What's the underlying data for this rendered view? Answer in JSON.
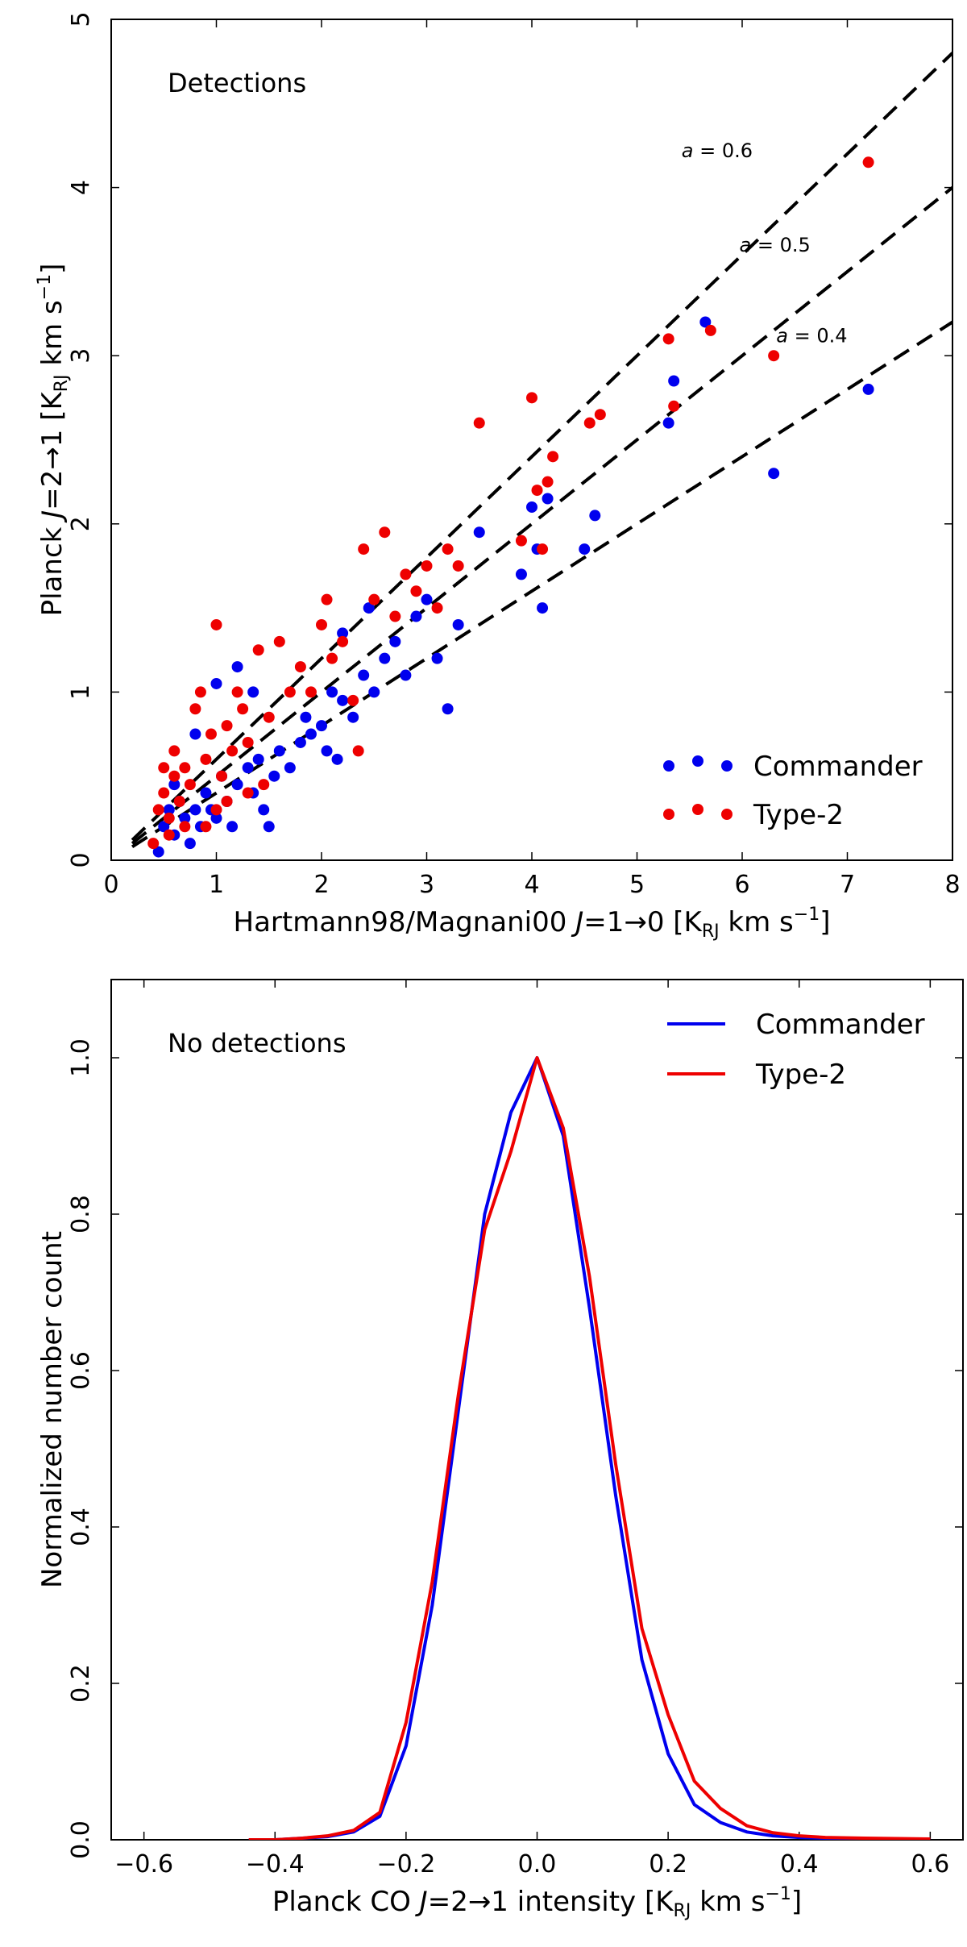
{
  "chart_data": [
    {
      "type": "scatter",
      "annotation": "Detections",
      "xlabel": {
        "pre": "Hartmann98/Magnani00 ",
        "var": "J",
        "mid": "=1→0 [K",
        "sub": "RJ",
        "post": " km s",
        "sup": "−1",
        "end": "]"
      },
      "ylabel": {
        "pre": "Planck ",
        "var": "J",
        "mid": "=2→1 [K",
        "sub": "RJ",
        "post": " km s",
        "sup": "−1",
        "end": "]"
      },
      "xlim": [
        0,
        8
      ],
      "ylim": [
        0,
        5
      ],
      "xticks": [
        "0",
        "1",
        "2",
        "3",
        "4",
        "5",
        "6",
        "7",
        "8"
      ],
      "yticks": [
        "0",
        "1",
        "2",
        "3",
        "4",
        "5"
      ],
      "legend": {
        "position": "lower-right",
        "entries": [
          "Commander",
          "Type-2"
        ]
      },
      "lines": [
        {
          "slope": 0.6,
          "label": "a = 0.6",
          "var": "a",
          "text": " = 0.6",
          "style": "dashed"
        },
        {
          "slope": 0.5,
          "label": "a = 0.5",
          "var": "a",
          "text": " = 0.5",
          "style": "dashed"
        },
        {
          "slope": 0.4,
          "label": "a = 0.4",
          "var": "a",
          "text": " = 0.4",
          "style": "dashed"
        }
      ],
      "series": [
        {
          "name": "Commander",
          "color": "#0000ee",
          "points": [
            [
              0.45,
              0.05
            ],
            [
              0.5,
              0.2
            ],
            [
              0.55,
              0.3
            ],
            [
              0.6,
              0.15
            ],
            [
              0.65,
              0.35
            ],
            [
              0.7,
              0.25
            ],
            [
              0.75,
              0.1
            ],
            [
              0.8,
              0.3
            ],
            [
              0.85,
              0.2
            ],
            [
              0.9,
              0.4
            ],
            [
              0.95,
              0.3
            ],
            [
              1.0,
              0.25
            ],
            [
              1.05,
              0.5
            ],
            [
              1.1,
              0.35
            ],
            [
              1.15,
              0.2
            ],
            [
              1.2,
              0.45
            ],
            [
              1.3,
              0.55
            ],
            [
              1.35,
              0.4
            ],
            [
              1.4,
              0.6
            ],
            [
              1.45,
              0.3
            ],
            [
              1.5,
              0.2
            ],
            [
              1.55,
              0.5
            ],
            [
              1.6,
              0.65
            ],
            [
              1.7,
              0.55
            ],
            [
              1.8,
              0.7
            ],
            [
              1.9,
              0.75
            ],
            [
              2.0,
              0.8
            ],
            [
              2.05,
              0.65
            ],
            [
              2.1,
              1.0
            ],
            [
              2.2,
              0.95
            ],
            [
              2.3,
              0.85
            ],
            [
              2.4,
              1.1
            ],
            [
              2.5,
              1.0
            ],
            [
              2.6,
              1.2
            ],
            [
              2.7,
              1.3
            ],
            [
              2.8,
              1.1
            ],
            [
              2.9,
              1.45
            ],
            [
              3.0,
              1.55
            ],
            [
              3.1,
              1.2
            ],
            [
              3.2,
              0.9
            ],
            [
              3.3,
              1.4
            ],
            [
              3.5,
              1.95
            ],
            [
              3.9,
              1.7
            ],
            [
              4.0,
              2.1
            ],
            [
              4.05,
              1.85
            ],
            [
              4.1,
              1.5
            ],
            [
              4.15,
              2.15
            ],
            [
              4.5,
              1.85
            ],
            [
              4.6,
              2.05
            ],
            [
              5.3,
              2.6
            ],
            [
              5.35,
              2.85
            ],
            [
              5.65,
              3.2
            ],
            [
              6.3,
              2.3
            ],
            [
              7.2,
              2.8
            ],
            [
              1.0,
              1.05
            ],
            [
              1.2,
              1.15
            ],
            [
              1.35,
              1.0
            ],
            [
              0.8,
              0.75
            ],
            [
              0.6,
              0.45
            ],
            [
              2.2,
              1.35
            ],
            [
              2.45,
              1.5
            ],
            [
              1.85,
              0.85
            ],
            [
              2.15,
              0.6
            ]
          ]
        },
        {
          "name": "Type-2",
          "color": "#ee0000",
          "points": [
            [
              0.4,
              0.1
            ],
            [
              0.45,
              0.3
            ],
            [
              0.5,
              0.4
            ],
            [
              0.55,
              0.25
            ],
            [
              0.6,
              0.5
            ],
            [
              0.65,
              0.35
            ],
            [
              0.7,
              0.2
            ],
            [
              0.75,
              0.45
            ],
            [
              0.8,
              0.9
            ],
            [
              0.85,
              1.0
            ],
            [
              0.9,
              0.6
            ],
            [
              0.95,
              0.75
            ],
            [
              1.0,
              1.4
            ],
            [
              1.05,
              0.5
            ],
            [
              1.1,
              0.8
            ],
            [
              1.15,
              0.65
            ],
            [
              1.2,
              1.0
            ],
            [
              1.25,
              0.9
            ],
            [
              1.3,
              0.7
            ],
            [
              1.4,
              1.25
            ],
            [
              1.5,
              0.85
            ],
            [
              1.6,
              1.3
            ],
            [
              1.7,
              1.0
            ],
            [
              1.8,
              1.15
            ],
            [
              1.9,
              1.0
            ],
            [
              2.0,
              1.4
            ],
            [
              2.05,
              1.55
            ],
            [
              2.1,
              1.2
            ],
            [
              2.2,
              1.3
            ],
            [
              2.3,
              0.95
            ],
            [
              2.4,
              1.85
            ],
            [
              2.5,
              1.55
            ],
            [
              2.6,
              1.95
            ],
            [
              2.7,
              1.45
            ],
            [
              2.8,
              1.7
            ],
            [
              2.9,
              1.6
            ],
            [
              3.0,
              1.75
            ],
            [
              3.1,
              1.5
            ],
            [
              3.2,
              1.85
            ],
            [
              3.3,
              1.75
            ],
            [
              3.5,
              2.6
            ],
            [
              3.9,
              1.9
            ],
            [
              4.0,
              2.75
            ],
            [
              4.05,
              2.2
            ],
            [
              4.1,
              1.85
            ],
            [
              4.15,
              2.25
            ],
            [
              4.2,
              2.4
            ],
            [
              4.55,
              2.6
            ],
            [
              4.65,
              2.65
            ],
            [
              5.3,
              3.1
            ],
            [
              5.35,
              2.7
            ],
            [
              5.7,
              3.15
            ],
            [
              6.3,
              3.0
            ],
            [
              7.2,
              4.15
            ],
            [
              0.9,
              0.2
            ],
            [
              1.0,
              0.3
            ],
            [
              1.1,
              0.35
            ],
            [
              0.7,
              0.55
            ],
            [
              0.6,
              0.65
            ],
            [
              1.3,
              0.4
            ],
            [
              1.45,
              0.45
            ],
            [
              2.35,
              0.65
            ],
            [
              0.55,
              0.15
            ],
            [
              0.5,
              0.55
            ]
          ]
        }
      ]
    },
    {
      "type": "line",
      "annotation": "No detections",
      "xlabel": {
        "pre": "Planck CO ",
        "var": "J",
        "mid": "=2→1 intensity [K",
        "sub": "RJ",
        "post": " km s",
        "sup": "−1",
        "end": "]"
      },
      "ylabel": {
        "text": "Normalized number count"
      },
      "xlim": [
        -0.65,
        0.65
      ],
      "ylim": [
        0,
        1.1
      ],
      "xticks": [
        "−0.6",
        "−0.4",
        "−0.2",
        "0.0",
        "0.2",
        "0.4",
        "0.6"
      ],
      "yticks": [
        "0.0",
        "0.2",
        "0.4",
        "0.6",
        "0.8",
        "1.0"
      ],
      "legend": {
        "position": "top-right",
        "entries": [
          "Commander",
          "Type-2"
        ]
      },
      "series": [
        {
          "name": "Commander",
          "color": "#0000ee",
          "x": [
            -0.44,
            -0.4,
            -0.36,
            -0.32,
            -0.28,
            -0.24,
            -0.2,
            -0.16,
            -0.12,
            -0.08,
            -0.04,
            0.0,
            0.04,
            0.08,
            0.12,
            0.16,
            0.2,
            0.24,
            0.28,
            0.32,
            0.36,
            0.4,
            0.44,
            0.5,
            0.6
          ],
          "values": [
            0.0,
            0.0,
            0.002,
            0.004,
            0.01,
            0.03,
            0.12,
            0.3,
            0.55,
            0.8,
            0.93,
            1.0,
            0.9,
            0.68,
            0.44,
            0.23,
            0.11,
            0.045,
            0.022,
            0.01,
            0.005,
            0.003,
            0.002,
            0.001,
            0.0
          ]
        },
        {
          "name": "Type-2",
          "color": "#ee0000",
          "x": [
            -0.44,
            -0.4,
            -0.36,
            -0.32,
            -0.28,
            -0.24,
            -0.2,
            -0.16,
            -0.12,
            -0.08,
            -0.04,
            0.0,
            0.04,
            0.08,
            0.12,
            0.16,
            0.2,
            0.24,
            0.28,
            0.32,
            0.36,
            0.4,
            0.44,
            0.5,
            0.6
          ],
          "values": [
            0.0,
            0.0,
            0.002,
            0.005,
            0.012,
            0.035,
            0.15,
            0.33,
            0.57,
            0.78,
            0.88,
            1.0,
            0.91,
            0.72,
            0.48,
            0.27,
            0.16,
            0.075,
            0.04,
            0.018,
            0.009,
            0.005,
            0.003,
            0.002,
            0.001
          ]
        }
      ]
    }
  ]
}
